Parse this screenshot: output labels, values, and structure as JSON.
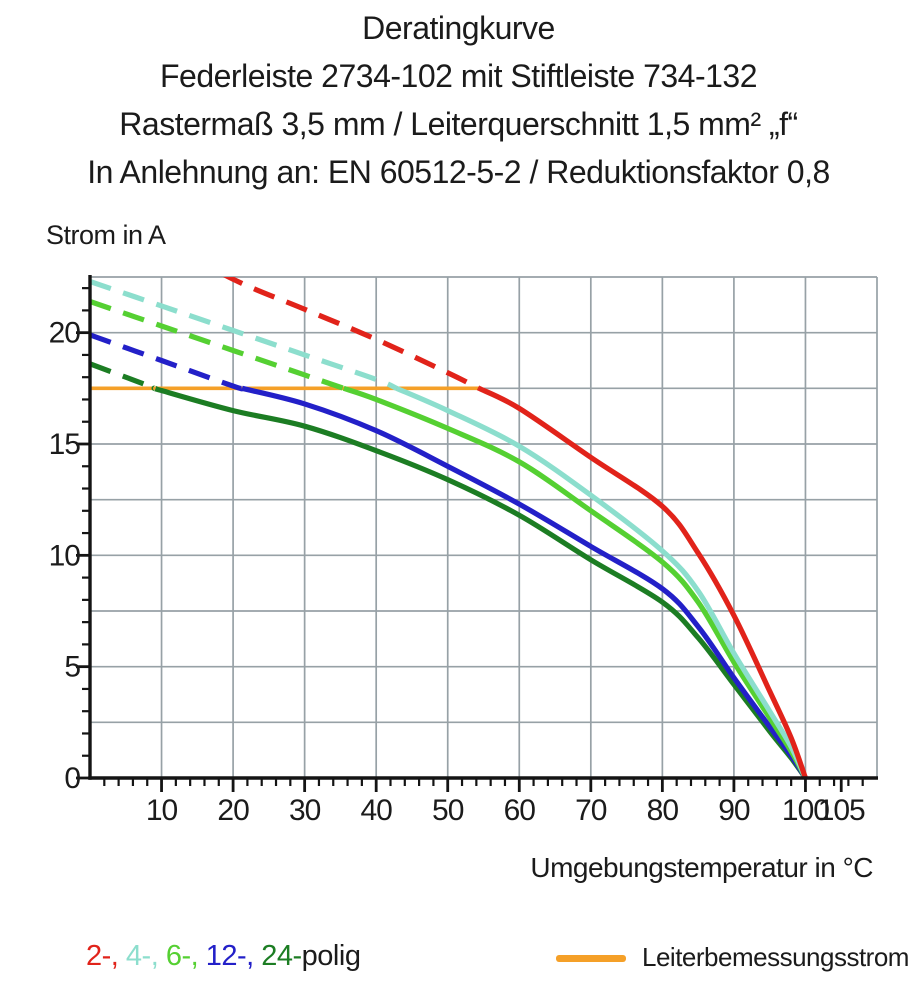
{
  "title": {
    "lines": [
      "Deratingkurve",
      "Federleiste 2734-102 mit Stiftleiste 734-132",
      "Rastermaß 3,5 mm / Leiterquerschnitt 1,5 mm² „f“",
      "In Anlehnung an: EN 60512-5-2 / Reduktionsfaktor 0,8"
    ]
  },
  "chart_data": {
    "type": "line",
    "title": "Deratingkurve",
    "xlabel": "Umgebungstemperatur in °C",
    "ylabel": "Strom in A",
    "xlim": [
      0,
      110
    ],
    "ylim": [
      0,
      22.5
    ],
    "grid": {
      "on": true,
      "x_step": 10,
      "y_step": 2.5
    },
    "x_minor_tick_step": 2,
    "y_minor_tick_step": 1,
    "x_tick_labels": [
      10,
      20,
      30,
      40,
      50,
      60,
      70,
      80,
      90,
      100,
      105
    ],
    "y_tick_labels": [
      0,
      5,
      10,
      15,
      20
    ],
    "dash_rule": "curves are dashed above the rated current (17.5 A) and solid below it",
    "rated_current": {
      "label": "Leiterbemessungsstrom",
      "value_A": 17.5,
      "x_start": 0,
      "x_end": 54.4,
      "color": "#f5a028"
    },
    "series": [
      {
        "name": "24-polig",
        "color": "#1c7d23",
        "points": [
          [
            0,
            18.6
          ],
          [
            10,
            17.4
          ],
          [
            20,
            16.5
          ],
          [
            30,
            15.8
          ],
          [
            40,
            14.7
          ],
          [
            50,
            13.4
          ],
          [
            60,
            11.8
          ],
          [
            70,
            9.8
          ],
          [
            80,
            7.9
          ],
          [
            85,
            6.3
          ],
          [
            90,
            4.2
          ],
          [
            95,
            2.1
          ],
          [
            98,
            0.9
          ],
          [
            100,
            0
          ]
        ]
      },
      {
        "name": "12-polig",
        "color": "#2320c8",
        "points": [
          [
            0,
            19.9
          ],
          [
            10,
            18.75
          ],
          [
            20,
            17.6
          ],
          [
            30,
            16.8
          ],
          [
            40,
            15.6
          ],
          [
            50,
            14.0
          ],
          [
            60,
            12.3
          ],
          [
            70,
            10.4
          ],
          [
            80,
            8.5
          ],
          [
            85,
            6.8
          ],
          [
            90,
            4.5
          ],
          [
            95,
            2.3
          ],
          [
            98,
            1.0
          ],
          [
            100,
            0
          ]
        ]
      },
      {
        "name": "6-polig",
        "color": "#55d032",
        "points": [
          [
            0,
            21.4
          ],
          [
            10,
            20.3
          ],
          [
            20,
            19.2
          ],
          [
            30,
            18.1
          ],
          [
            40,
            17.0
          ],
          [
            50,
            15.7
          ],
          [
            60,
            14.2
          ],
          [
            70,
            12.0
          ],
          [
            80,
            9.7
          ],
          [
            85,
            7.9
          ],
          [
            90,
            5.2
          ],
          [
            95,
            2.7
          ],
          [
            98,
            1.2
          ],
          [
            100,
            0
          ]
        ]
      },
      {
        "name": "4-polig",
        "color": "#8cdecd",
        "points": [
          [
            0,
            22.3
          ],
          [
            10,
            21.2
          ],
          [
            20,
            20.1
          ],
          [
            30,
            19.0
          ],
          [
            40,
            17.9
          ],
          [
            50,
            16.5
          ],
          [
            60,
            14.9
          ],
          [
            70,
            12.7
          ],
          [
            80,
            10.2
          ],
          [
            85,
            8.4
          ],
          [
            90,
            5.6
          ],
          [
            95,
            3.0
          ],
          [
            98,
            1.4
          ],
          [
            100,
            0
          ]
        ]
      },
      {
        "name": "2-polig",
        "color": "#e1231a",
        "points": [
          [
            10,
            24.2
          ],
          [
            20,
            22.4
          ],
          [
            30,
            21.05
          ],
          [
            40,
            19.7
          ],
          [
            50,
            18.2
          ],
          [
            60,
            16.6
          ],
          [
            70,
            14.4
          ],
          [
            80,
            12.2
          ],
          [
            85,
            10.1
          ],
          [
            90,
            7.3
          ],
          [
            95,
            3.9
          ],
          [
            98,
            1.8
          ],
          [
            100,
            0
          ]
        ]
      }
    ],
    "colors": {
      "grid": "#97a1a6",
      "axis": "#141414",
      "text": "#1b1b1b"
    }
  },
  "legend": {
    "poles": {
      "parts": [
        {
          "text": "2-, ",
          "color": "#e1231a"
        },
        {
          "text": "4-, ",
          "color": "#8cdecd"
        },
        {
          "text": "6-, ",
          "color": "#55d032"
        },
        {
          "text": "12-, ",
          "color": "#2320c8"
        },
        {
          "text": "24-",
          "color": "#1c7d23"
        },
        {
          "text": "polig",
          "color": "#1b1b1b"
        }
      ]
    },
    "rated": {
      "label": "Leiterbemessungsstrom",
      "swatch_color": "#f5a028"
    }
  }
}
